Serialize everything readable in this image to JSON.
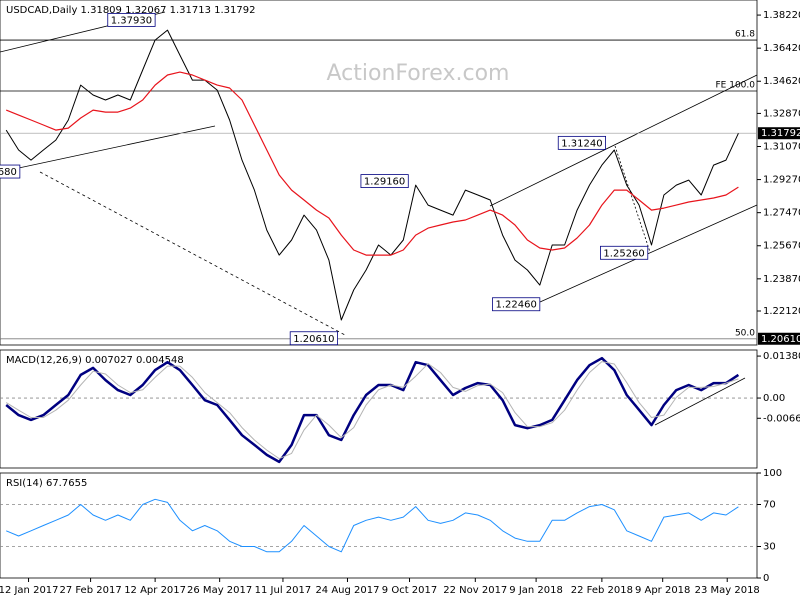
{
  "chart_data": [
    {
      "type": "line",
      "title": "USDCAD,Daily  1.31809 1.32067 1.31713 1.31792",
      "watermark": "ActionForex.com",
      "xlim": [
        -0.5,
        60.5
      ],
      "ylim": [
        1.2027,
        1.3904
      ],
      "yticks": [
        {
          "value": 1.3822,
          "label": "1.38220"
        },
        {
          "value": 1.3642,
          "label": "1.36420"
        },
        {
          "value": 1.3462,
          "label": "1.34620"
        },
        {
          "value": 1.3287,
          "label": "1.32870"
        },
        {
          "value": 1.3107,
          "label": "1.31070"
        },
        {
          "value": 1.2927,
          "label": "1.29270"
        },
        {
          "value": 1.2747,
          "label": "1.27470"
        },
        {
          "value": 1.2567,
          "label": "1.25670"
        },
        {
          "value": 1.2387,
          "label": "1.23870"
        },
        {
          "value": 1.2212,
          "label": "1.22120"
        }
      ],
      "series": [
        {
          "color": "#000000",
          "values": [
            1.3196,
            1.3088,
            1.3033,
            1.3088,
            1.3142,
            1.3251,
            1.3441,
            1.3387,
            1.336,
            1.3387,
            1.336,
            1.3523,
            1.3686,
            1.374,
            1.3604,
            1.3468,
            1.3468,
            1.3414,
            1.3251,
            1.3033,
            1.287,
            1.2652,
            1.2516,
            1.2598,
            1.2734,
            1.2652,
            1.2489,
            1.2163,
            1.2326,
            1.2435,
            1.2571,
            1.2516,
            1.2598,
            1.2897,
            1.2788,
            1.2761,
            1.2734,
            1.287,
            1.2843,
            1.2816,
            1.2625,
            1.2489,
            1.2435,
            1.2353,
            1.2571,
            1.2571,
            1.2761,
            1.2897,
            1.3006,
            1.3088,
            1.2897,
            1.2788,
            1.2571,
            1.2843,
            1.2897,
            1.2924,
            1.2843,
            1.3006,
            1.3033,
            1.3179
          ]
        },
        {
          "color": "#e8141c",
          "values": [
            1.3305,
            1.3278,
            1.3251,
            1.3224,
            1.3196,
            1.3207,
            1.3262,
            1.3305,
            1.3294,
            1.3294,
            1.3316,
            1.336,
            1.3441,
            1.3496,
            1.3512,
            1.3496,
            1.3468,
            1.3441,
            1.3425,
            1.336,
            1.3224,
            1.3088,
            1.2952,
            1.287,
            1.2816,
            1.2761,
            1.2718,
            1.2625,
            1.2544,
            1.2516,
            1.2516,
            1.2516,
            1.2544,
            1.2625,
            1.2663,
            1.268,
            1.2696,
            1.2707,
            1.2734,
            1.2761,
            1.2734,
            1.268,
            1.2598,
            1.2555,
            1.2544,
            1.2555,
            1.2609,
            1.268,
            1.2788,
            1.287,
            1.287,
            1.2816,
            1.2761,
            1.2772,
            1.2788,
            1.2805,
            1.2816,
            1.2827,
            1.2843,
            1.2886
          ]
        }
      ],
      "levels": [
        {
          "value": 1.3686,
          "label": "61.8"
        },
        {
          "value": 1.3409,
          "label": "FE 100.0"
        },
        {
          "value": 1.2061,
          "label": "50.0"
        }
      ],
      "annotations": [
        {
          "text": "1.37930",
          "x": 12,
          "y": 1.3793
        },
        {
          "text": "1.31240",
          "x": 48.3,
          "y": 1.3124
        },
        {
          "text": "1.29160",
          "x": 32.4,
          "y": 1.2916
        },
        {
          "text": "1.25260",
          "x": 51.7,
          "y": 1.2526
        },
        {
          "text": "1.22460",
          "x": 43,
          "y": 1.2246
        },
        {
          "text": "1.20610",
          "x": 26.7,
          "y": 1.2061
        },
        {
          "text": "680",
          "x": 1.1,
          "y": 1.2968
        }
      ],
      "right_labels": [
        1.31792,
        {
          "value": 1.2061,
          "label": "1.20610"
        }
      ]
    },
    {
      "type": "line",
      "title": "MACD(12,26,9) 0.007027 0.004548",
      "xlim": [
        -0.5,
        60.5
      ],
      "ylim": [
        -0.023,
        0.0158
      ],
      "yticks": [
        0.013802,
        {
          "value": 0,
          "label": "0.00"
        },
        -0.006648
      ],
      "levels": [
        0
      ],
      "series": [
        {
          "color": "#000080",
          "values": [
            -0.0023,
            -0.0056,
            -0.0072,
            -0.0056,
            -0.0023,
            0.001,
            0.0076,
            0.0099,
            0.0059,
            0.0026,
            0.001,
            0.0043,
            0.0092,
            0.0118,
            0.0092,
            0.0043,
            -0.0007,
            -0.0023,
            -0.0072,
            -0.0122,
            -0.0154,
            -0.0187,
            -0.021,
            -0.0154,
            -0.0056,
            -0.0056,
            -0.0122,
            -0.0138,
            -0.0056,
            0.001,
            0.0043,
            0.0043,
            0.0026,
            0.0118,
            0.0108,
            0.0059,
            0.001,
            0.0033,
            0.0049,
            0.0043,
            -0.0007,
            -0.0089,
            -0.0099,
            -0.0089,
            -0.0072,
            -0.0007,
            0.0059,
            0.0108,
            0.0131,
            0.0092,
            0.001,
            -0.0039,
            -0.0089,
            -0.0023,
            0.0026,
            0.0043,
            0.0026,
            0.0049,
            0.0049,
            0.0076
          ]
        },
        {
          "color": "#b4b4b4",
          "values": [
            -0.0015,
            -0.004,
            -0.0064,
            -0.0064,
            -0.004,
            -0.0007,
            0.0043,
            0.0088,
            0.0079,
            0.0043,
            0.0018,
            0.0027,
            0.0068,
            0.0105,
            0.0105,
            0.0068,
            0.0018,
            -0.0015,
            -0.0048,
            -0.0097,
            -0.0138,
            -0.0171,
            -0.0199,
            -0.0182,
            -0.0105,
            -0.0056,
            -0.0089,
            -0.013,
            -0.0097,
            -0.0023,
            0.0027,
            0.0043,
            0.0035,
            0.0072,
            0.0113,
            0.0084,
            0.0035,
            0.0022,
            0.0041,
            0.0046,
            0.0018,
            -0.0048,
            -0.0094,
            -0.0094,
            -0.0081,
            -0.004,
            0.0026,
            0.0084,
            0.012,
            0.0112,
            0.0051,
            -0.0015,
            -0.0064,
            -0.0056,
            0.0002,
            0.0035,
            0.0035,
            0.0038,
            0.0049,
            0.0063
          ]
        }
      ]
    },
    {
      "type": "line",
      "title": "RSI(14) 67.7655",
      "xlim": [
        -0.5,
        60.5
      ],
      "ylim": [
        0,
        100
      ],
      "yticks": [
        100,
        70,
        30,
        0
      ],
      "levels": [
        70,
        30
      ],
      "xticks": [
        {
          "value": 1.8,
          "label": "12 Jan 2017"
        },
        {
          "value": 6.8,
          "label": "27 Feb 2017"
        },
        {
          "value": 12,
          "label": "12 Apr 2017"
        },
        {
          "value": 17.2,
          "label": "26 May 2017"
        },
        {
          "value": 22.3,
          "label": "11 Jul 2017"
        },
        {
          "value": 27.5,
          "label": "24 Aug 2017"
        },
        {
          "value": 32.5,
          "label": "9 Oct 2017"
        },
        {
          "value": 37.8,
          "label": "22 Nov 2017"
        },
        {
          "value": 42.7,
          "label": "9 Jan 2018"
        },
        {
          "value": 48,
          "label": "22 Feb 2018"
        },
        {
          "value": 52.9,
          "label": "9 Apr 2018"
        },
        {
          "value": 58.1,
          "label": "23 May 2018"
        }
      ],
      "series": [
        {
          "color": "#1e90ff",
          "values": [
            45,
            40,
            45,
            50,
            55,
            60,
            70,
            60,
            55,
            60,
            55,
            70,
            75,
            72,
            55,
            45,
            50,
            45,
            35,
            30,
            30,
            25,
            25,
            35,
            50,
            40,
            30,
            25,
            50,
            55,
            58,
            55,
            58,
            68,
            55,
            52,
            55,
            62,
            60,
            55,
            45,
            38,
            35,
            35,
            55,
            55,
            62,
            68,
            70,
            65,
            45,
            40,
            35,
            58,
            60,
            62,
            55,
            62,
            60,
            67.7655
          ]
        }
      ]
    }
  ]
}
